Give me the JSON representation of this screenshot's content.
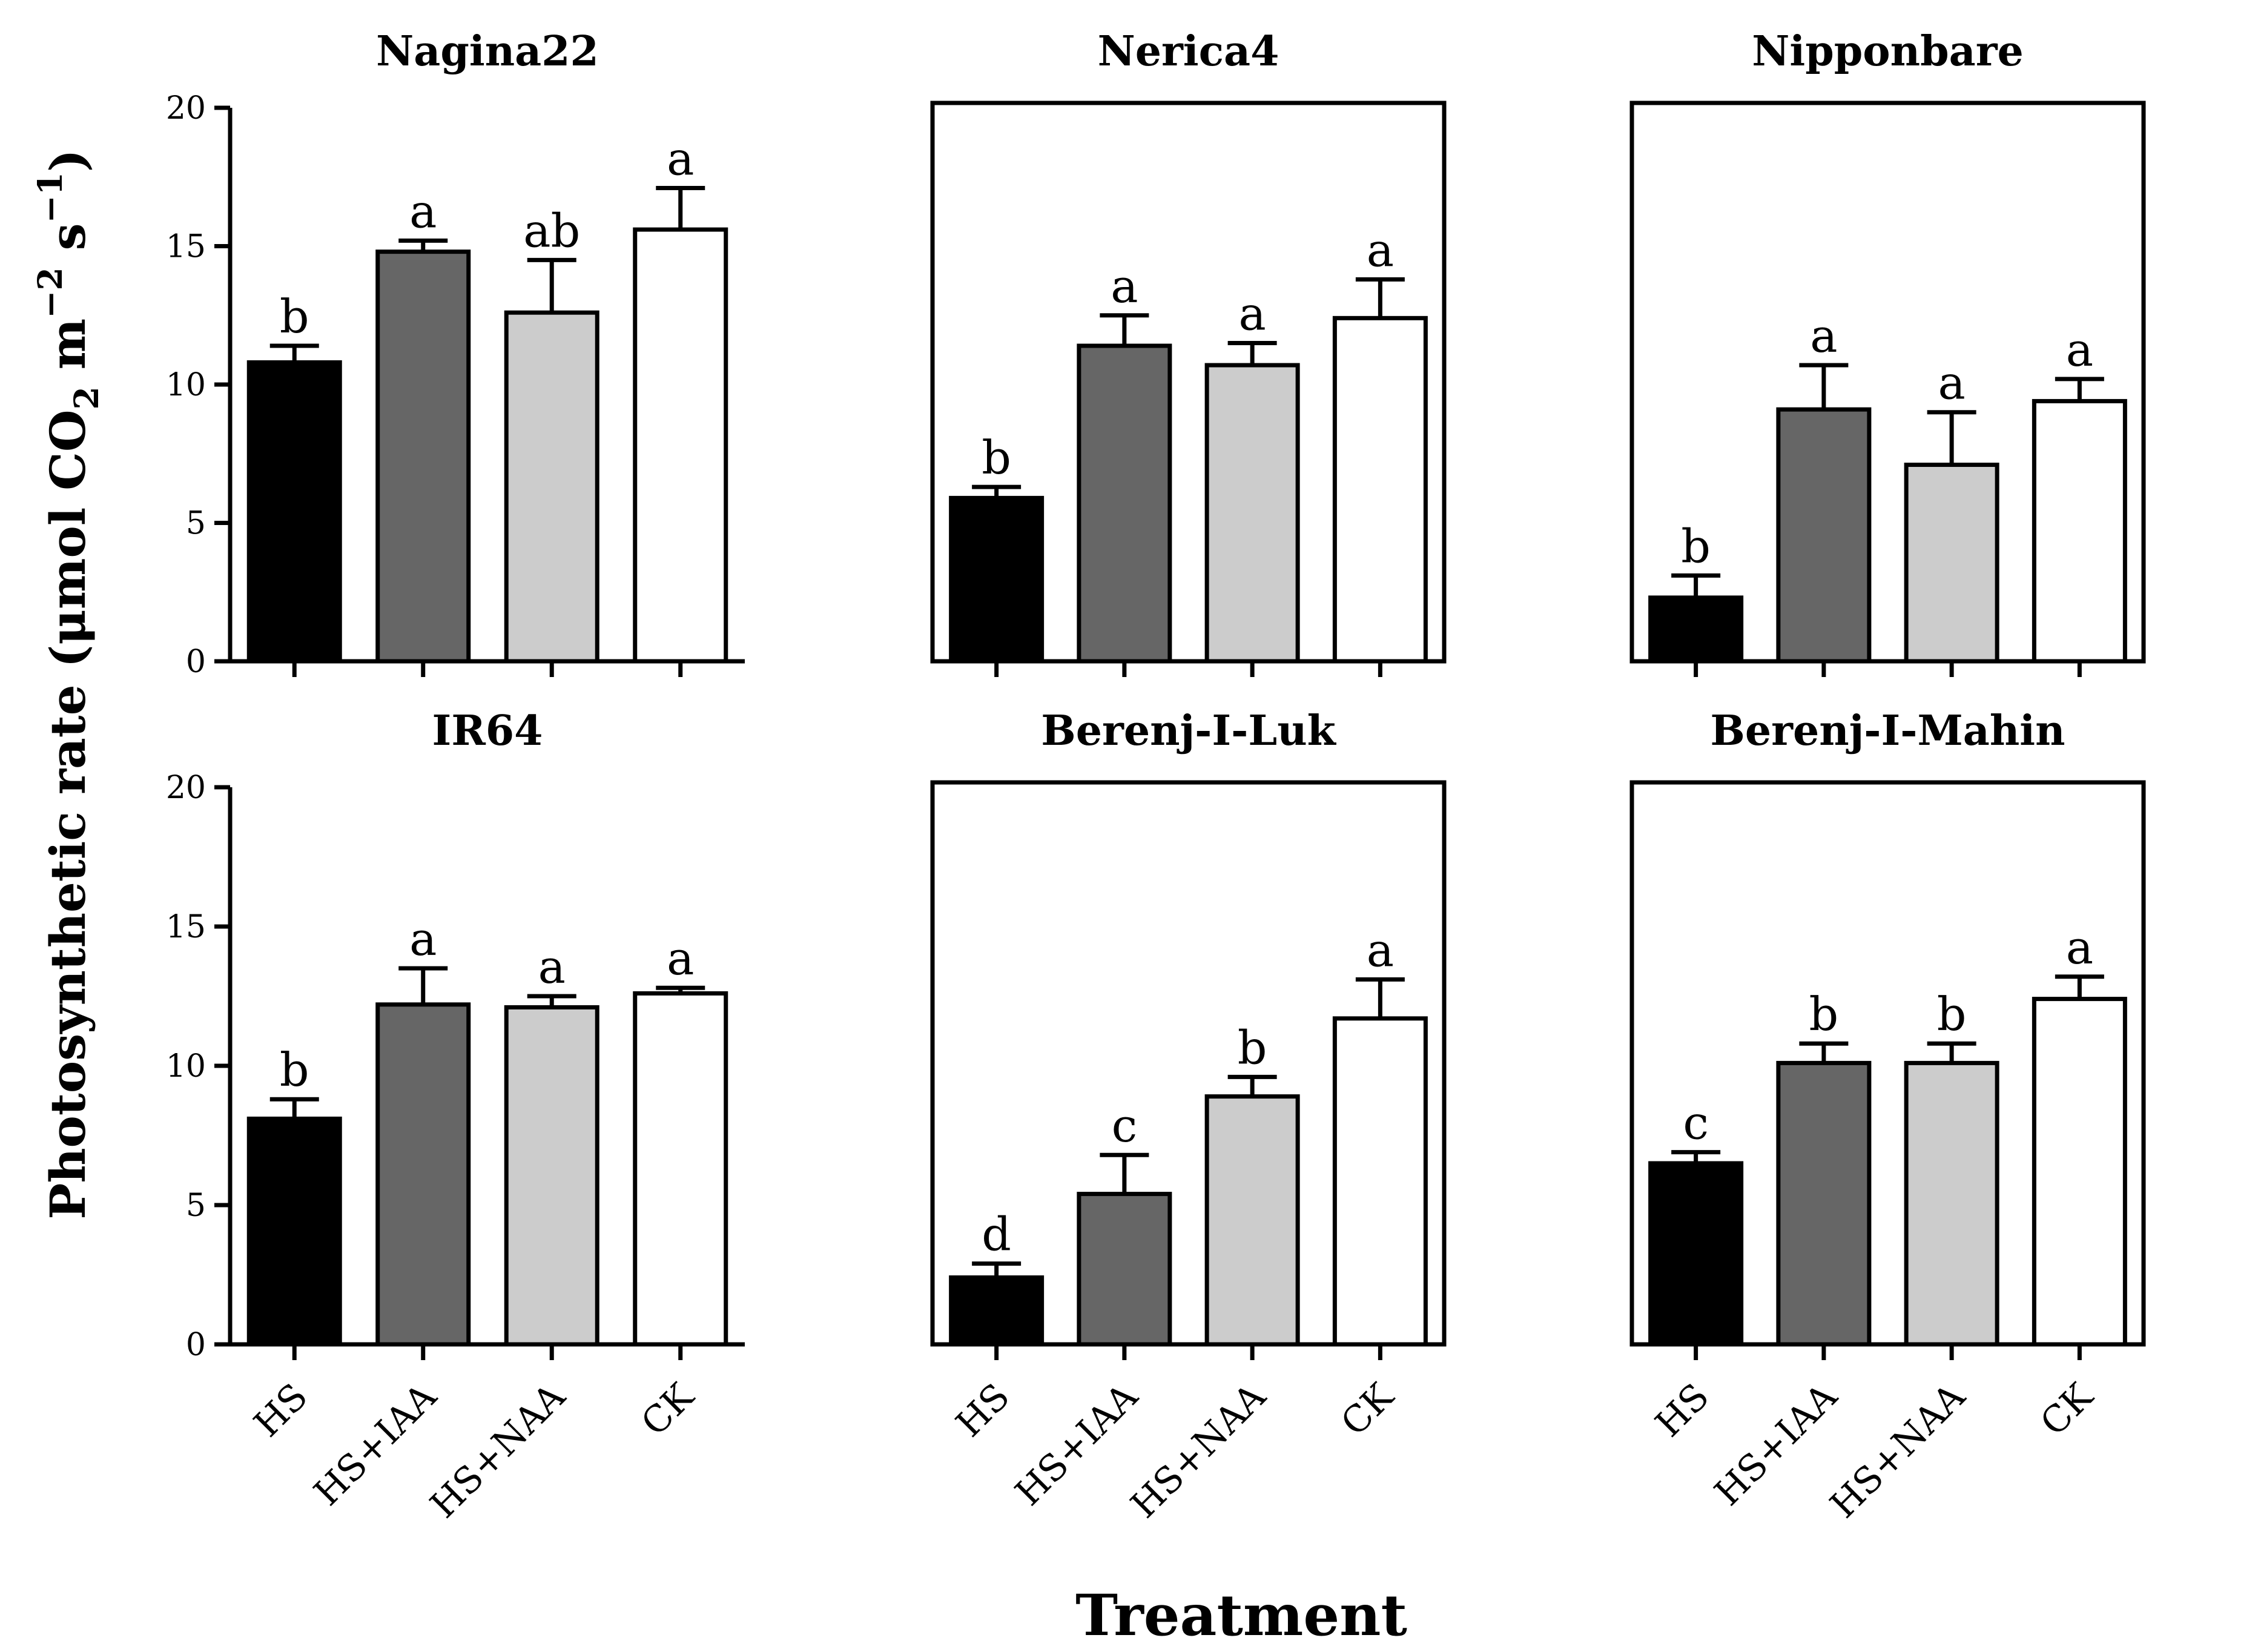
{
  "figure": {
    "xlabel": "Treatment",
    "ylabel": {
      "main": "Photosynthetic rate (μmol CO",
      "sub2": "2",
      "m": " m",
      "exp1": "−2",
      "s": " s",
      "exp2": "−1",
      "close": ")"
    }
  },
  "colors": {
    "HS": "#000000",
    "HS+IAA": "#666666",
    "HS+NAA": "#cccccc",
    "CK": "#ffffff",
    "outline": "#000000"
  },
  "chart_data": [
    {
      "type": "bar",
      "title": "Nagina22",
      "categories": [
        "HS",
        "HS+IAA",
        "HS+NAA",
        "CK"
      ],
      "values": [
        10.8,
        14.8,
        12.6,
        15.6
      ],
      "errors": [
        0.6,
        0.4,
        1.9,
        1.5
      ],
      "letters": [
        "b",
        "a",
        "ab",
        "a"
      ],
      "ylim": [
        0,
        20
      ],
      "yticks": [
        0,
        5,
        10,
        15,
        20
      ]
    },
    {
      "type": "bar",
      "title": "Nerica4",
      "categories": [
        "HS",
        "HS+IAA",
        "HS+NAA",
        "CK"
      ],
      "values": [
        5.9,
        11.4,
        10.7,
        12.4
      ],
      "errors": [
        0.4,
        1.1,
        0.8,
        1.4
      ],
      "letters": [
        "b",
        "a",
        "a",
        "a"
      ],
      "ylim": [
        0,
        20
      ],
      "yticks": []
    },
    {
      "type": "bar",
      "title": "Nipponbare",
      "categories": [
        "HS",
        "HS+IAA",
        "HS+NAA",
        "CK"
      ],
      "values": [
        2.3,
        9.1,
        7.1,
        9.4
      ],
      "errors": [
        0.8,
        1.6,
        1.9,
        0.8
      ],
      "letters": [
        "b",
        "a",
        "a",
        "a"
      ],
      "ylim": [
        0,
        20
      ],
      "yticks": []
    },
    {
      "type": "bar",
      "title": "IR64",
      "categories": [
        "HS",
        "HS+IAA",
        "HS+NAA",
        "CK"
      ],
      "values": [
        8.1,
        12.2,
        12.1,
        12.6
      ],
      "errors": [
        0.7,
        1.3,
        0.4,
        0.2
      ],
      "letters": [
        "b",
        "a",
        "a",
        "a"
      ],
      "ylim": [
        0,
        20
      ],
      "yticks": [
        0,
        5,
        10,
        15,
        20
      ]
    },
    {
      "type": "bar",
      "title": "Berenj-I-Luk",
      "categories": [
        "HS",
        "HS+IAA",
        "HS+NAA",
        "CK"
      ],
      "values": [
        2.4,
        5.4,
        8.9,
        11.7
      ],
      "errors": [
        0.5,
        1.4,
        0.7,
        1.4
      ],
      "letters": [
        "d",
        "c",
        "b",
        "a"
      ],
      "ylim": [
        0,
        20
      ],
      "yticks": []
    },
    {
      "type": "bar",
      "title": "Berenj-I-Mahin",
      "categories": [
        "HS",
        "HS+IAA",
        "HS+NAA",
        "CK"
      ],
      "values": [
        6.5,
        10.1,
        10.1,
        12.4
      ],
      "errors": [
        0.4,
        0.7,
        0.7,
        0.8
      ],
      "letters": [
        "c",
        "b",
        "b",
        "a"
      ],
      "ylim": [
        0,
        20
      ],
      "yticks": []
    }
  ]
}
